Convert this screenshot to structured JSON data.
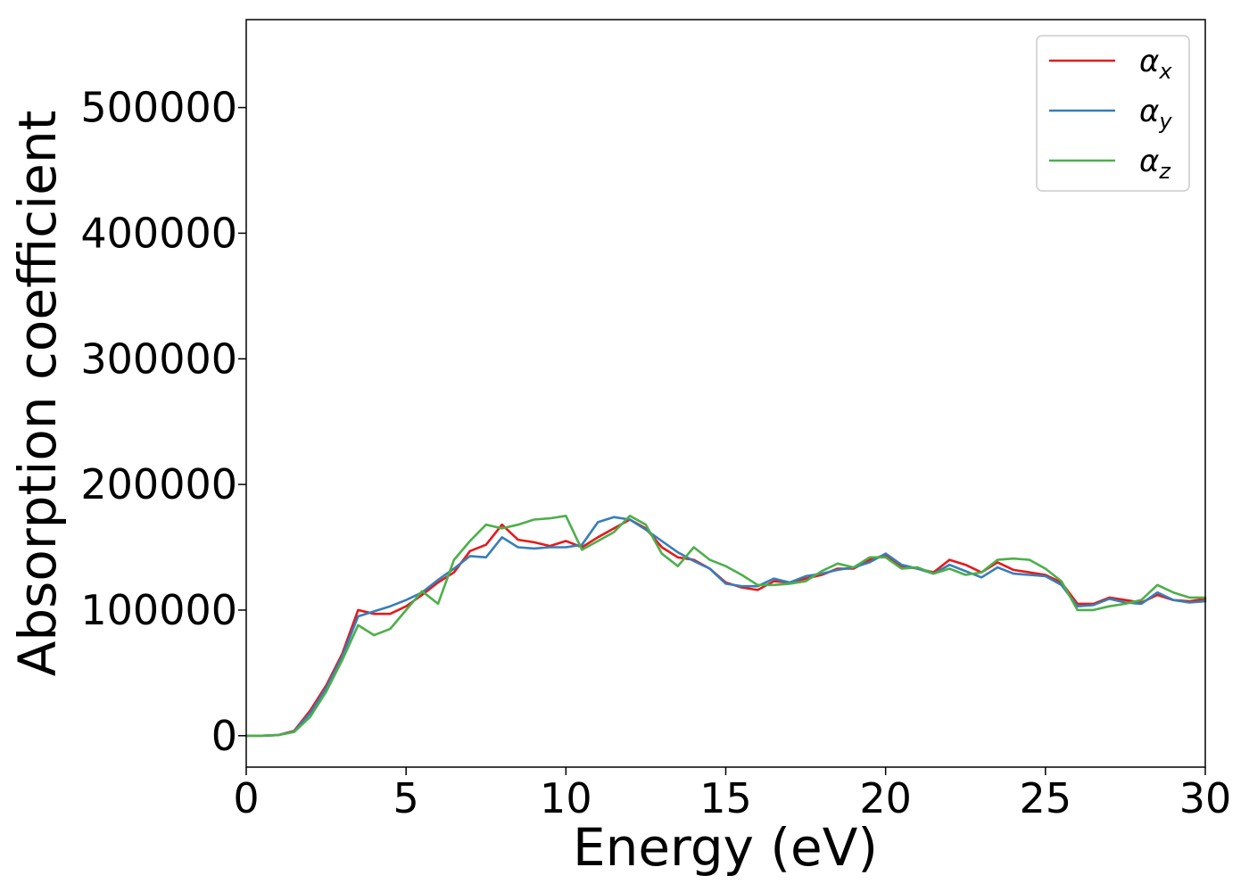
{
  "chart_data": {
    "type": "line",
    "title": "",
    "xlabel": "Energy (eV)",
    "ylabel": "Absorption coefficient",
    "xlim": [
      0,
      30
    ],
    "ylim": [
      -25000,
      570000
    ],
    "xticks": [
      0,
      5,
      10,
      15,
      20,
      25,
      30
    ],
    "xtick_labels": [
      "0",
      "5",
      "10",
      "15",
      "20",
      "25",
      "30"
    ],
    "yticks": [
      0,
      100000,
      200000,
      300000,
      400000,
      500000
    ],
    "ytick_labels": [
      "0",
      "100000",
      "200000",
      "300000",
      "400000",
      "500000"
    ],
    "grid": false,
    "legend_position": "top-right",
    "x": [
      0,
      0.5,
      1.0,
      1.5,
      2.0,
      2.5,
      3.0,
      3.5,
      4.0,
      4.5,
      5.0,
      5.5,
      6.0,
      6.5,
      7.0,
      7.5,
      8.0,
      8.5,
      9.0,
      9.5,
      10.0,
      10.5,
      11.0,
      11.5,
      12.0,
      12.5,
      13.0,
      13.5,
      14.0,
      14.5,
      15.0,
      15.5,
      16.0,
      16.5,
      17.0,
      17.5,
      18.0,
      18.5,
      19.0,
      19.5,
      20.0,
      20.5,
      21.0,
      21.5,
      22.0,
      22.5,
      23.0,
      23.5,
      24.0,
      24.5,
      25.0,
      25.5,
      26.0,
      26.5,
      27.0,
      27.5,
      28.0,
      28.5,
      29.0,
      29.5,
      30.0
    ],
    "series": [
      {
        "name": "α",
        "subscript": "x",
        "color": "#e41a1c",
        "values": [
          0,
          0,
          500,
          4000,
          20000,
          40000,
          65000,
          100000,
          97000,
          97000,
          103000,
          112000,
          122000,
          130000,
          147000,
          152000,
          168000,
          156000,
          154000,
          151000,
          155000,
          150000,
          158000,
          165000,
          172000,
          165000,
          150000,
          142000,
          140000,
          133000,
          122000,
          118000,
          116000,
          123000,
          122000,
          125000,
          128000,
          133000,
          133000,
          140000,
          144000,
          135000,
          133000,
          130000,
          140000,
          136000,
          130000,
          138000,
          132000,
          130000,
          128000,
          122000,
          105000,
          105000,
          110000,
          108000,
          106000,
          112000,
          108000,
          107000,
          109000
        ]
      },
      {
        "name": "α",
        "subscript": "y",
        "color": "#377eb8",
        "values": [
          0,
          0,
          500,
          3500,
          18000,
          38000,
          63000,
          95000,
          99000,
          103000,
          108000,
          114000,
          124000,
          133000,
          143000,
          142000,
          158000,
          150000,
          149000,
          150000,
          150000,
          152000,
          170000,
          174000,
          172000,
          164000,
          155000,
          146000,
          139000,
          133000,
          121000,
          119000,
          119000,
          125000,
          122000,
          127000,
          129000,
          132000,
          134000,
          138000,
          145000,
          136000,
          133000,
          129000,
          136000,
          131000,
          126000,
          134000,
          129000,
          128000,
          127000,
          120000,
          103000,
          104000,
          109000,
          106000,
          105000,
          114000,
          108000,
          106000,
          107000
        ]
      },
      {
        "name": "α",
        "subscript": "z",
        "color": "#4daf4a",
        "values": [
          0,
          0,
          500,
          3000,
          15000,
          35000,
          60000,
          88000,
          80000,
          85000,
          100000,
          115000,
          105000,
          140000,
          155000,
          168000,
          165000,
          168000,
          172000,
          173000,
          175000,
          148000,
          155000,
          162000,
          175000,
          168000,
          145000,
          135000,
          150000,
          140000,
          135000,
          128000,
          120000,
          120000,
          121000,
          123000,
          131000,
          137000,
          134000,
          142000,
          142000,
          133000,
          134000,
          129000,
          133000,
          128000,
          130000,
          140000,
          141000,
          140000,
          133000,
          123000,
          100000,
          100000,
          103000,
          105000,
          108000,
          120000,
          114000,
          110000,
          110000
        ]
      }
    ]
  }
}
